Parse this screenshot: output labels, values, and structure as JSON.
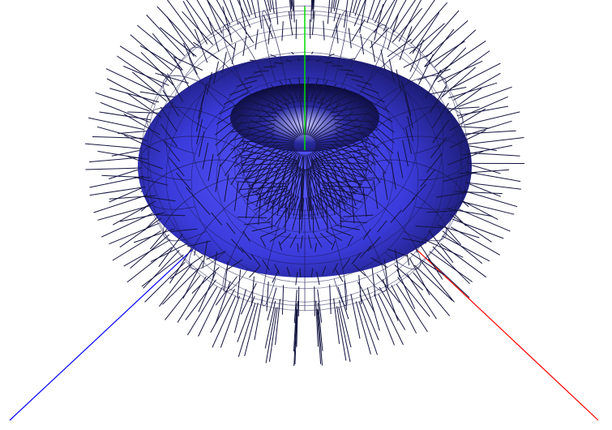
{
  "scene": {
    "background": "#ffffff",
    "surface": {
      "kind": "torus",
      "shape": "torus",
      "color": "#3b3bdc",
      "highlight_color": "#8a8aff",
      "shadow_color": "#0d0d40",
      "mesh_line_color": "#1a1a50",
      "normals": {
        "shown": true,
        "color": "#141440"
      }
    },
    "axes": {
      "x": {
        "color": "#ff0000"
      },
      "y": {
        "color": "#00dd00"
      },
      "z": {
        "color": "#0000ff"
      }
    }
  }
}
